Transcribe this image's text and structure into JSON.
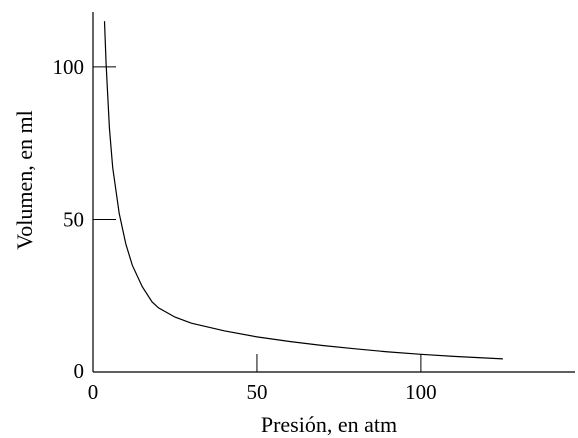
{
  "chart_data": {
    "type": "line",
    "title": "",
    "xlabel": "Presión, en atm",
    "ylabel": "Volumen, en ml",
    "xlim": [
      0,
      147
    ],
    "ylim": [
      0,
      118
    ],
    "x_ticks": [
      0,
      50,
      100
    ],
    "y_ticks": [
      0,
      50,
      100
    ],
    "grid": false,
    "series": [
      {
        "x": [
          3.5,
          4,
          5,
          6,
          8,
          10,
          12,
          15,
          18,
          20,
          25,
          30,
          40,
          50,
          60,
          70,
          80,
          90,
          100,
          110,
          125
        ],
        "y": [
          115,
          101,
          80,
          67,
          52,
          42,
          35,
          28,
          23,
          21,
          18,
          16,
          13.5,
          11.5,
          10,
          8.7,
          7.6,
          6.6,
          5.8,
          5.1,
          4.3
        ]
      }
    ]
  }
}
